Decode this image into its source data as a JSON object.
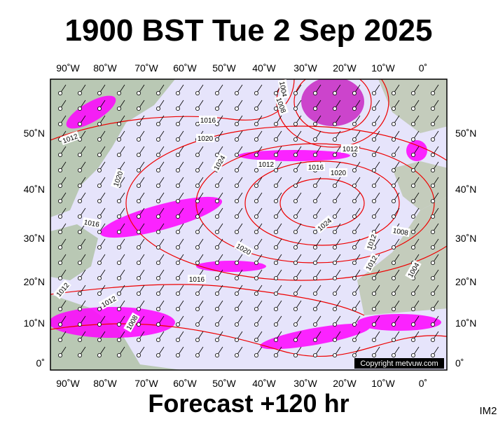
{
  "header": {
    "title": "1900 BST Tue 2 Sep 2025"
  },
  "footer": {
    "forecast": "Forecast +120 hr",
    "code": "IM2"
  },
  "map": {
    "copyright": "Copyright metvuw.com",
    "lon_labels": [
      "90˚W",
      "80˚W",
      "70˚W",
      "60˚W",
      "50˚W",
      "40˚W",
      "30˚W",
      "20˚W",
      "10˚W",
      "0˚"
    ],
    "lat_labels": [
      "50˚N",
      "40˚N",
      "30˚N",
      "20˚N",
      "10˚N",
      "0˚"
    ],
    "isobar_labels": [
      "1012",
      "1016",
      "1020",
      "1024",
      "1012",
      "1016",
      "1020",
      "1012",
      "1020",
      "1016",
      "1024",
      "1020",
      "1016",
      "1012",
      "1012",
      "1008",
      "1004",
      "1008",
      "1008",
      "1012",
      "1012",
      "1004"
    ]
  }
}
